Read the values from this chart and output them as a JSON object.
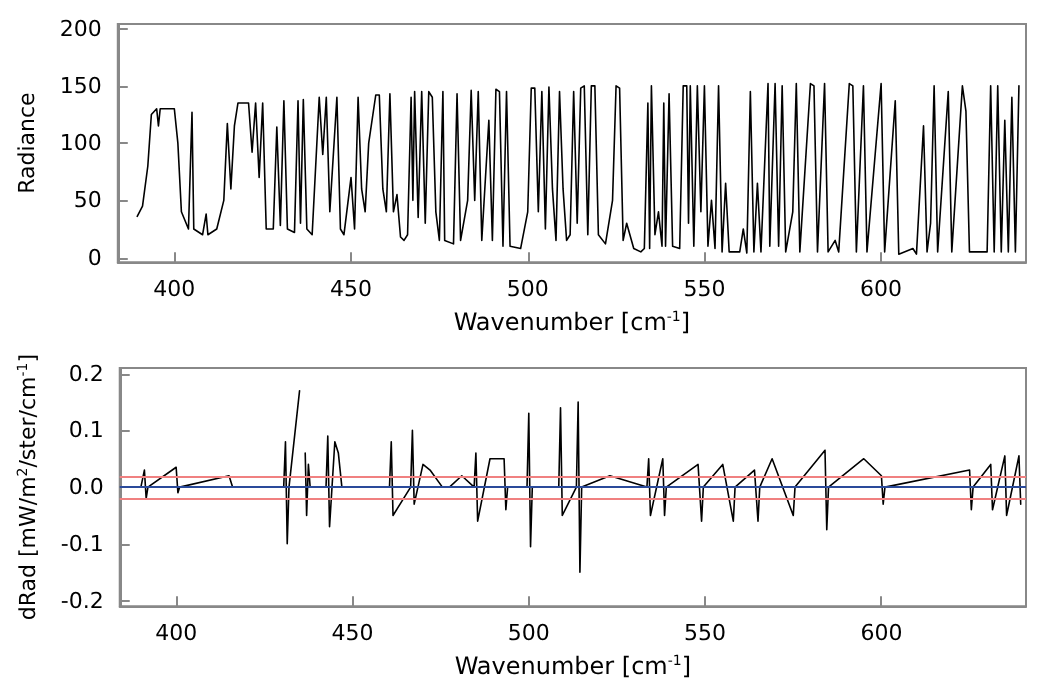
{
  "chart_data": [
    {
      "type": "line",
      "xlabel": "Wavenumber [cm$^{-1}$]",
      "ylabel": "Radiance",
      "color": "#000000",
      "marker": "none",
      "line_style": "solid",
      "xlim": [
        384,
        641
      ],
      "xticks": [
        400,
        450,
        500,
        550,
        600
      ],
      "ylim": [
        -4,
        204
      ],
      "yticks": [
        0,
        50,
        100,
        150,
        200
      ],
      "x": [
        389.5,
        391,
        392.5,
        393.5,
        395,
        395.5,
        396,
        400,
        401,
        402,
        404,
        405,
        405.5,
        408,
        409,
        409.5,
        412,
        414,
        415,
        416,
        417,
        418,
        421,
        422,
        423,
        424,
        425,
        426,
        428,
        429,
        430,
        431,
        432,
        434,
        435,
        435.7,
        436.5,
        437.5,
        439,
        441,
        442,
        443,
        444,
        446,
        447,
        448,
        450,
        451,
        452,
        453,
        454,
        455,
        457,
        458,
        459,
        460,
        461,
        462,
        463,
        464,
        465,
        466,
        467,
        467.5,
        468,
        469,
        470,
        471,
        472,
        473,
        474,
        475,
        476,
        476.5,
        479,
        480,
        481,
        483,
        484,
        485,
        486,
        487,
        489,
        490,
        491,
        492,
        493,
        494,
        495,
        498,
        500,
        501,
        502,
        503,
        504,
        505,
        506,
        507,
        508,
        509,
        510,
        511,
        512,
        513,
        514,
        515,
        516,
        517,
        518,
        519,
        520,
        522,
        524,
        525,
        526,
        527,
        528,
        530,
        532,
        533,
        534,
        534.5,
        535,
        536,
        537,
        538,
        538.5,
        539,
        540,
        541,
        543,
        544,
        545,
        545.5,
        546,
        547,
        548,
        549,
        550,
        551,
        552,
        553,
        554,
        555,
        556,
        557,
        560,
        561,
        562,
        563,
        564,
        565,
        566,
        568,
        568.5,
        570,
        571,
        572,
        573,
        575,
        576,
        577,
        580,
        581,
        582,
        584,
        585,
        587,
        588,
        591,
        592,
        593,
        595,
        596,
        600,
        601,
        604,
        605,
        609,
        610,
        612,
        613,
        614,
        615,
        616,
        619,
        620,
        623,
        624,
        625,
        630,
        631,
        632,
        633,
        634,
        635,
        636,
        637,
        638,
        639
      ],
      "values": [
        36,
        45,
        80,
        125,
        130,
        115,
        130,
        130,
        100,
        40,
        25,
        127,
        25,
        20,
        38,
        20,
        25,
        50,
        117,
        60,
        115,
        135,
        135,
        92,
        135,
        70,
        135,
        25,
        25,
        114,
        28,
        137,
        25,
        22,
        137,
        30,
        138,
        25,
        20,
        140,
        90,
        140,
        40,
        140,
        25,
        20,
        70,
        25,
        140,
        60,
        40,
        100,
        142,
        142,
        60,
        40,
        143,
        40,
        55,
        18,
        15,
        20,
        140,
        50,
        145,
        35,
        145,
        30,
        145,
        140,
        40,
        15,
        145,
        15,
        12,
        143,
        15,
        50,
        146,
        50,
        145,
        15,
        120,
        15,
        147,
        145,
        10,
        145,
        10,
        8,
        40,
        148,
        148,
        40,
        145,
        25,
        149,
        60,
        15,
        145,
        60,
        15,
        20,
        145,
        30,
        148,
        150,
        20,
        150,
        150,
        20,
        12,
        50,
        150,
        148,
        15,
        30,
        8,
        5,
        8,
        135,
        8,
        150,
        20,
        40,
        10,
        135,
        10,
        143,
        10,
        8,
        150,
        150,
        30,
        150,
        10,
        150,
        40,
        150,
        10,
        50,
        8,
        150,
        5,
        65,
        5,
        5,
        25,
        4,
        145,
        5,
        65,
        5,
        152,
        10,
        152,
        10,
        150,
        5,
        40,
        152,
        5,
        152,
        150,
        5,
        152,
        5,
        15,
        5,
        152,
        150,
        5,
        150,
        5,
        152,
        5,
        137,
        3,
        8,
        3,
        115,
        5,
        30,
        150,
        5,
        145,
        5,
        150,
        128,
        5,
        5,
        150,
        5,
        150,
        5,
        120,
        5,
        140,
        5,
        150
      ]
    },
    {
      "type": "line",
      "xlabel": "Wavenumber [cm$^{-1}$]",
      "ylabel": "dRad [mW/m$^{2}$/ster/cm$^{-1}$]",
      "color": "#000000",
      "marker": "none",
      "line_style": "solid",
      "xlim": [
        384,
        641
      ],
      "xticks": [
        400,
        450,
        500,
        550,
        600
      ],
      "ylim": [
        -0.21,
        0.21
      ],
      "yticks": [
        {
          "value": -0.2,
          "label": "-0.2"
        },
        {
          "value": -0.1,
          "label": "-0.1"
        },
        {
          "value": 0,
          "label": "0.0"
        },
        {
          "value": 0.1,
          "label": "0.1"
        },
        {
          "value": 0.2,
          "label": "0.2"
        }
      ],
      "ref_lines": [
        {
          "axis": "y",
          "value": 0.02,
          "color": "#f08080"
        },
        {
          "axis": "y",
          "value": -0.02,
          "color": "#f08080"
        },
        {
          "axis": "y",
          "value": 0,
          "color": "#2a4a9a"
        }
      ],
      "x": [
        390,
        391,
        391.5,
        392,
        400,
        400.5,
        401,
        415,
        416,
        430.5,
        431,
        431.5,
        432,
        435,
        436,
        436.3,
        436.6,
        437,
        437.5,
        438,
        442.5,
        443,
        443.5,
        445,
        446,
        447,
        460.5,
        461,
        461.5,
        466.5,
        467,
        467.5,
        470,
        472,
        475.5,
        476,
        476.3,
        476.6,
        477,
        477.5,
        481,
        484.5,
        485,
        485.5,
        489,
        493,
        493.5,
        494,
        499.5,
        500,
        500.5,
        501,
        508.5,
        509,
        509.5,
        513.5,
        514,
        514.5,
        515,
        523,
        533.5,
        534,
        534.5,
        538,
        538.5,
        539,
        548,
        549,
        549.5,
        555,
        558,
        558.5,
        564,
        565,
        565.5,
        569,
        575,
        575.5,
        584,
        584.5,
        585,
        595,
        600,
        600.5,
        601,
        625,
        625.5,
        626,
        631,
        631.5,
        635,
        635.5,
        639,
        639.5
      ],
      "values": [
        0,
        0.03,
        -0.02,
        0,
        0.035,
        -0.01,
        0,
        0.02,
        0,
        0,
        0.08,
        -0.1,
        0,
        0.17,
        null,
        null,
        0.06,
        -0.05,
        0.04,
        0,
        0,
        0.09,
        -0.07,
        0.08,
        0.06,
        0,
        0,
        0.08,
        -0.05,
        0,
        0.1,
        -0.03,
        0.04,
        0.03,
        0,
        null,
        null,
        null,
        null,
        0,
        0.02,
        0,
        0.06,
        -0.06,
        0.05,
        0.05,
        -0.04,
        0,
        0,
        0.13,
        -0.105,
        0,
        0,
        0.14,
        -0.05,
        0,
        0.15,
        -0.15,
        0,
        0.02,
        0,
        0.05,
        -0.05,
        0.05,
        -0.05,
        0,
        0.04,
        -0.06,
        0,
        0.04,
        -0.06,
        0,
        0.03,
        -0.06,
        0,
        0.05,
        -0.05,
        0,
        0.065,
        -0.075,
        0,
        0.05,
        0.02,
        -0.03,
        0,
        0.03,
        -0.04,
        0,
        0.04,
        -0.04,
        0.055,
        -0.05,
        0.055,
        -0.03
      ]
    }
  ]
}
